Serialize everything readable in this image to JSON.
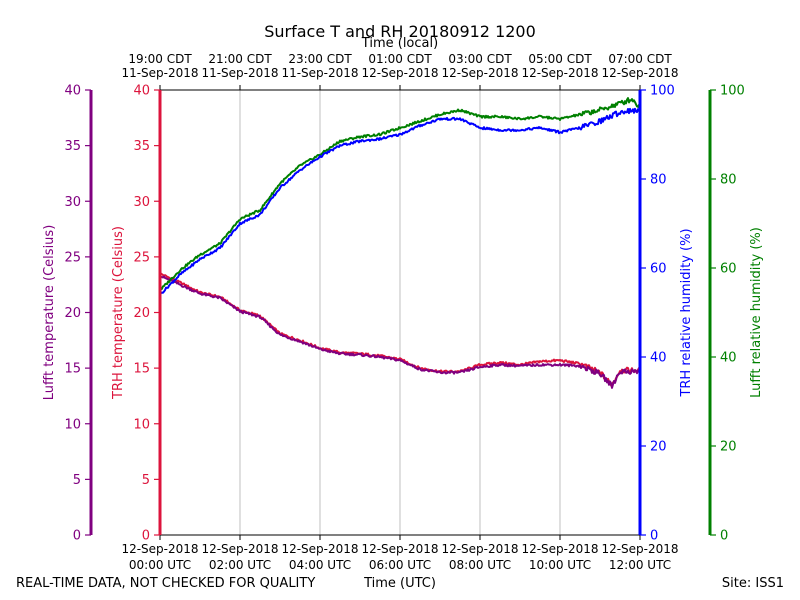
{
  "chart_data": {
    "type": "line",
    "title": "Surface T and RH 20180912 1200",
    "xlabel": "Time (UTC)",
    "top_xlabel": "Time (local)",
    "x_range": [
      "12-Sep-2018 00:00 UTC",
      "12-Sep-2018 12:00 UTC"
    ],
    "bottom_ticks": [
      {
        "hour": 0,
        "date": "12-Sep-2018",
        "time": "00:00 UTC"
      },
      {
        "hour": 2,
        "date": "12-Sep-2018",
        "time": "02:00 UTC"
      },
      {
        "hour": 4,
        "date": "12-Sep-2018",
        "time": "04:00 UTC"
      },
      {
        "hour": 6,
        "date": "12-Sep-2018",
        "time": "06:00 UTC"
      },
      {
        "hour": 8,
        "date": "12-Sep-2018",
        "time": "08:00 UTC"
      },
      {
        "hour": 10,
        "date": "12-Sep-2018",
        "time": "10:00 UTC"
      },
      {
        "hour": 12,
        "date": "12-Sep-2018",
        "time": "12:00 UTC"
      }
    ],
    "top_ticks": [
      {
        "hour": 0,
        "time": "19:00 CDT",
        "date": "11-Sep-2018"
      },
      {
        "hour": 2,
        "time": "21:00 CDT",
        "date": "11-Sep-2018"
      },
      {
        "hour": 4,
        "time": "23:00 CDT",
        "date": "11-Sep-2018"
      },
      {
        "hour": 6,
        "time": "01:00 CDT",
        "date": "12-Sep-2018"
      },
      {
        "hour": 8,
        "time": "03:00 CDT",
        "date": "12-Sep-2018"
      },
      {
        "hour": 10,
        "time": "05:00 CDT",
        "date": "12-Sep-2018"
      },
      {
        "hour": 12,
        "time": "07:00 CDT",
        "date": "12-Sep-2018"
      }
    ],
    "grid": "vertical",
    "axes": [
      {
        "id": "lufft_t",
        "label": "Lufft temperature (Celsius)",
        "side": "left-outer",
        "color": "#800080",
        "ylim": [
          0,
          40
        ],
        "ticks": [
          0,
          5,
          10,
          15,
          20,
          25,
          30,
          35,
          40
        ]
      },
      {
        "id": "trh_t",
        "label": "TRH temperature (Celsius)",
        "side": "left",
        "color": "#dc143c",
        "ylim": [
          0,
          40
        ],
        "ticks": [
          0,
          5,
          10,
          15,
          20,
          25,
          30,
          35,
          40
        ]
      },
      {
        "id": "trh_rh",
        "label": "TRH relative humidity (%)",
        "side": "right",
        "color": "#0000ff",
        "ylim": [
          0,
          100
        ],
        "ticks": [
          0,
          20,
          40,
          60,
          80,
          100
        ]
      },
      {
        "id": "lufft_rh",
        "label": "Lufft relative humidity (%)",
        "side": "right-outer",
        "color": "#008000",
        "ylim": [
          0,
          100
        ],
        "ticks": [
          0,
          20,
          40,
          60,
          80,
          100
        ]
      }
    ],
    "series": [
      {
        "axis": "trh_t",
        "color": "#dc143c",
        "x": [
          0,
          0.5,
          1,
          1.5,
          2,
          2.5,
          3,
          3.5,
          4,
          4.5,
          5,
          5.5,
          6,
          6.5,
          7,
          7.5,
          8,
          8.5,
          9,
          9.5,
          10,
          10.5,
          11,
          11.3,
          11.5,
          12
        ],
        "values": [
          23.5,
          22.7,
          21.8,
          21.4,
          20.2,
          19.7,
          18.1,
          17.5,
          16.8,
          16.4,
          16.3,
          16.1,
          15.8,
          15.0,
          14.7,
          14.7,
          15.3,
          15.5,
          15.3,
          15.6,
          15.7,
          15.4,
          14.6,
          13.5,
          14.8,
          14.8
        ]
      },
      {
        "axis": "lufft_t",
        "color": "#800080",
        "x": [
          0,
          0.5,
          1,
          1.5,
          2,
          2.5,
          3,
          3.5,
          4,
          4.5,
          5,
          5.5,
          6,
          6.5,
          7,
          7.5,
          8,
          8.5,
          9,
          9.5,
          10,
          10.5,
          11,
          11.3,
          11.5,
          12
        ],
        "values": [
          23.3,
          22.5,
          21.7,
          21.3,
          20.1,
          19.6,
          18.0,
          17.4,
          16.7,
          16.3,
          16.2,
          16.0,
          15.7,
          14.9,
          14.6,
          14.6,
          15.1,
          15.3,
          15.2,
          15.3,
          15.3,
          15.2,
          14.5,
          13.4,
          14.7,
          14.7
        ]
      },
      {
        "axis": "lufft_rh",
        "color": "#008000",
        "x": [
          0,
          0.5,
          1,
          1.5,
          2,
          2.5,
          3,
          3.5,
          4,
          4.5,
          5,
          5.5,
          6,
          6.5,
          7,
          7.5,
          8,
          8.5,
          9,
          9.5,
          10,
          10.5,
          11,
          11.5,
          11.8,
          12
        ],
        "values": [
          55,
          59.5,
          63,
          65.5,
          71,
          73,
          79,
          83,
          85.5,
          88.5,
          89.5,
          90,
          91.5,
          93,
          94.5,
          95.5,
          94,
          94,
          93.5,
          94,
          93.5,
          94.5,
          95.5,
          97,
          98,
          96
        ]
      },
      {
        "axis": "trh_rh",
        "color": "#0000ff",
        "x": [
          0,
          0.5,
          1,
          1.5,
          2,
          2.5,
          3,
          3.5,
          4,
          4.5,
          5,
          5.5,
          6,
          6.5,
          7,
          7.5,
          8,
          8.5,
          9,
          9.5,
          10,
          10.5,
          11,
          11.5,
          11.8,
          12
        ],
        "values": [
          54,
          58.5,
          62,
          64.5,
          70,
          72,
          78,
          82,
          85,
          87.5,
          88.5,
          89,
          90,
          92,
          93.5,
          93.5,
          91.5,
          91,
          91,
          91.5,
          90.5,
          91.5,
          93,
          95,
          95.5,
          95
        ]
      }
    ]
  },
  "footer": {
    "left": "REAL-TIME DATA, NOT CHECKED FOR QUALITY",
    "right": "Site: ISS1"
  }
}
